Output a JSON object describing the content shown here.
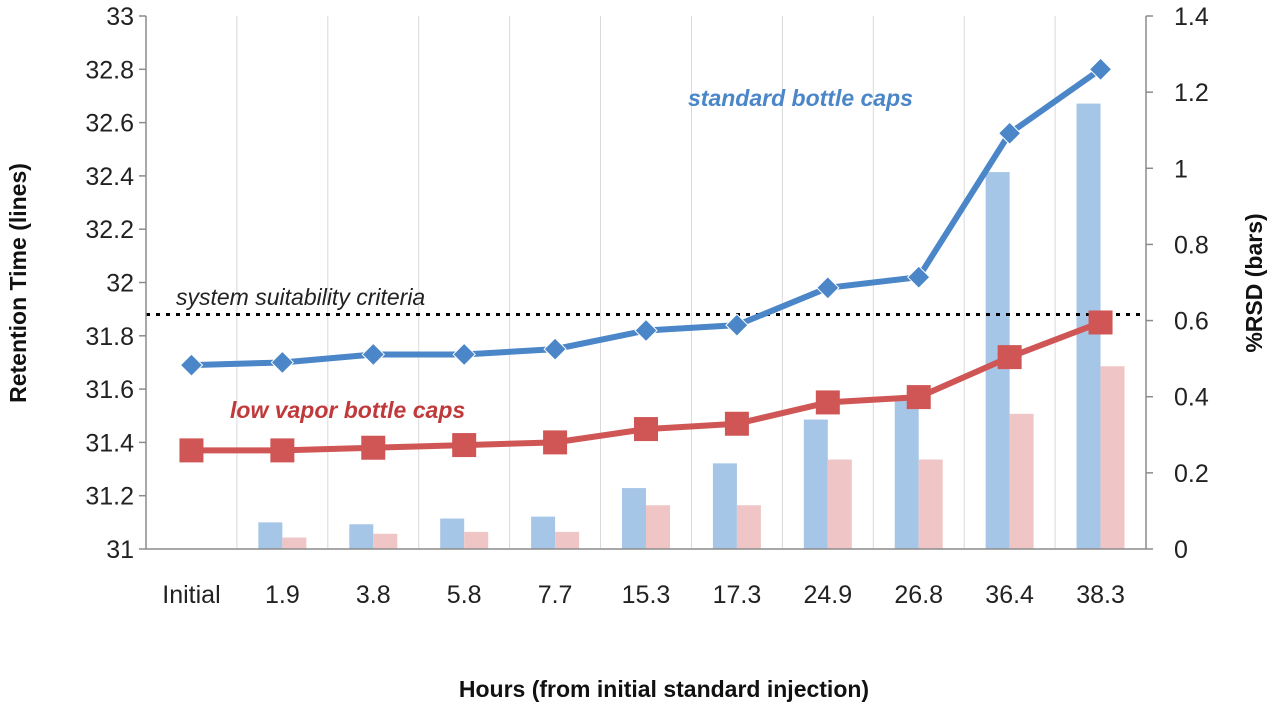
{
  "chart_data": {
    "type": "bar",
    "categories": [
      "Initial",
      "1.9",
      "3.8",
      "5.8",
      "7.7",
      "15.3",
      "17.3",
      "24.9",
      "26.8",
      "36.4",
      "38.3"
    ],
    "xlabel": "Hours (from initial standard injection)",
    "ylabel": "Retention Time (lines)",
    "y2label": "%RSD (bars)",
    "ylim": [
      31,
      33
    ],
    "y_ticks": [
      "31",
      "31.2",
      "31.4",
      "31.6",
      "31.8",
      "32",
      "32.2",
      "32.4",
      "32.6",
      "32.8",
      "33"
    ],
    "y2lim": [
      0,
      1.4
    ],
    "y2_ticks": [
      "0",
      "0.2",
      "0.4",
      "0.6",
      "0.8",
      "1",
      "1.2",
      "1.4"
    ],
    "grid": "vertical",
    "series": [
      {
        "name": "standard bottle caps",
        "kind": "line",
        "axis": "left",
        "marker": "diamond",
        "color": "#4a86c8",
        "values": [
          31.69,
          31.7,
          31.73,
          31.73,
          31.75,
          31.82,
          31.84,
          31.98,
          32.02,
          32.56,
          32.8
        ]
      },
      {
        "name": "low vapor bottle caps",
        "kind": "line",
        "axis": "left",
        "marker": "square",
        "color": "#cf5654",
        "values": [
          31.37,
          31.37,
          31.38,
          31.39,
          31.4,
          31.45,
          31.47,
          31.55,
          31.57,
          31.72,
          31.85
        ]
      },
      {
        "kind": "bar",
        "axis": "right",
        "color": "#a6c6e8",
        "values": [
          0,
          0.07,
          0.065,
          0.08,
          0.085,
          0.16,
          0.225,
          0.34,
          0.4,
          0.99,
          1.17
        ]
      },
      {
        "kind": "bar",
        "axis": "right",
        "color": "#efc6c5",
        "values": [
          0,
          0.03,
          0.04,
          0.045,
          0.045,
          0.115,
          0.115,
          0.235,
          0.235,
          0.355,
          0.48
        ]
      }
    ],
    "reference_line": {
      "label": "system suitability criteria",
      "y": 31.88,
      "style": "dotted",
      "color": "#000000"
    },
    "annotations": {
      "standard_label": "standard bottle caps",
      "low_vapor_label": "low vapor bottle caps"
    }
  }
}
